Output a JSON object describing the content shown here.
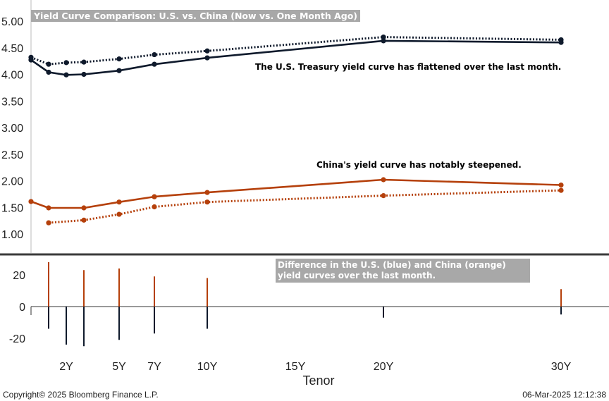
{
  "colors": {
    "us": "#0f1a2c",
    "china": "#b5400b",
    "label_box": "#a8a8a8",
    "divider": "#3b3b3b"
  },
  "chart_data": [
    {
      "type": "line",
      "title": "Yield Curve Comparison: U.S. vs. China (Now vs. One Month Ago)",
      "xlabel": "Tenor",
      "x": [
        0.25,
        1,
        2,
        3,
        5,
        7,
        10,
        20,
        30
      ],
      "xticks": [
        2,
        5,
        7,
        10,
        15,
        20,
        30
      ],
      "xtick_labels": [
        "2Y",
        "5Y",
        "7Y",
        "10Y",
        "15Y",
        "20Y",
        "30Y"
      ],
      "ylim": [
        0.85,
        5.1
      ],
      "yticks": [
        1.0,
        1.5,
        2.0,
        2.5,
        3.0,
        3.5,
        4.0,
        4.5,
        5.0
      ],
      "ytick_labels": [
        "1.00",
        "1.50",
        "2.00",
        "2.50",
        "3.00",
        "3.50",
        "4.00",
        "4.50",
        "5.00"
      ],
      "series": [
        {
          "style": "solid",
          "color": "us",
          "x": [
            0.25,
            1,
            2,
            3,
            5,
            7,
            10,
            20,
            30
          ],
          "values": [
            4.27,
            4.04,
            3.99,
            4.0,
            4.07,
            4.19,
            4.31,
            4.63,
            4.6
          ]
        },
        {
          "style": "dotted",
          "color": "us",
          "x": [
            0.25,
            1,
            2,
            3,
            5,
            7,
            10,
            20,
            30
          ],
          "values": [
            4.32,
            4.19,
            4.22,
            4.23,
            4.29,
            4.37,
            4.44,
            4.7,
            4.65
          ]
        },
        {
          "style": "solid",
          "color": "china",
          "x": [
            0.25,
            1,
            3,
            5,
            7,
            10,
            20,
            30
          ],
          "values": [
            1.61,
            1.49,
            1.49,
            1.6,
            1.7,
            1.78,
            2.02,
            1.92
          ]
        },
        {
          "style": "dotted",
          "color": "china",
          "x": [
            1,
            3,
            5,
            7,
            10,
            20,
            30
          ],
          "values": [
            1.21,
            1.26,
            1.37,
            1.51,
            1.6,
            1.72,
            1.82
          ]
        }
      ],
      "annotations": [
        "The U.S. Treasury yield curve has flattened over the last month.",
        "China's yield curve has notably steepened."
      ]
    },
    {
      "type": "bar",
      "ylim": [
        -25,
        30
      ],
      "yticks": [
        20,
        0,
        -20
      ],
      "ytick_labels": [
        "20",
        "0",
        "-20"
      ],
      "series": [
        {
          "color": "us",
          "x": [
            1,
            2,
            3,
            5,
            7,
            10,
            20,
            30
          ],
          "values": [
            -14,
            -24,
            -25,
            -21,
            -17,
            -14,
            -7,
            -5
          ]
        },
        {
          "color": "china",
          "x": [
            1,
            3,
            5,
            7,
            10,
            30
          ],
          "values": [
            28,
            23,
            24,
            19,
            18,
            11
          ]
        }
      ],
      "annotation": "Difference in the U.S. (blue) and China (orange) yield curves over the last month."
    }
  ],
  "footer": {
    "copyright": "Copyright© 2025 Bloomberg Finance L.P.",
    "timestamp": "06-Mar-2025 12:12:38"
  }
}
